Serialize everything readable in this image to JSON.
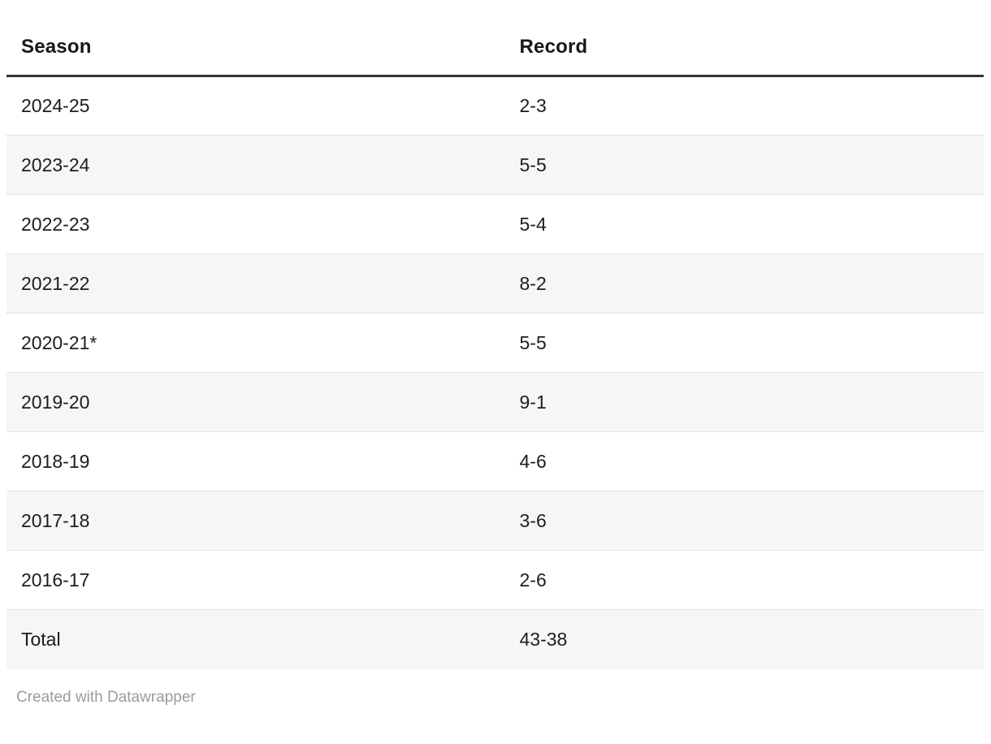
{
  "chart_data": {
    "type": "table",
    "columns": [
      "Season",
      "Record"
    ],
    "rows": [
      [
        "2024-25",
        "2-3"
      ],
      [
        "2023-24",
        "5-5"
      ],
      [
        "2022-23",
        "5-4"
      ],
      [
        "2021-22",
        "8-2"
      ],
      [
        "2020-21*",
        "5-5"
      ],
      [
        "2019-20",
        "9-1"
      ],
      [
        "2018-19",
        "4-6"
      ],
      [
        "2017-18",
        "3-6"
      ],
      [
        "2016-17",
        "2-6"
      ],
      [
        "Total",
        "43-38"
      ]
    ],
    "totals_row": [
      "Total",
      "43-38"
    ],
    "layout_hints": {
      "striped_rows": "alternating starting with second data row",
      "header_rule": "thick dark line under header"
    }
  },
  "footer": {
    "attribution": "Created with Datawrapper"
  },
  "colors": {
    "background": "#ffffff",
    "text": "#1d1d1d",
    "header_text": "#181818",
    "header_rule": "#333333",
    "row_stripe": "#f6f6f6",
    "row_divider": "#e3e3e3",
    "footer_text": "#9c9c9c"
  }
}
